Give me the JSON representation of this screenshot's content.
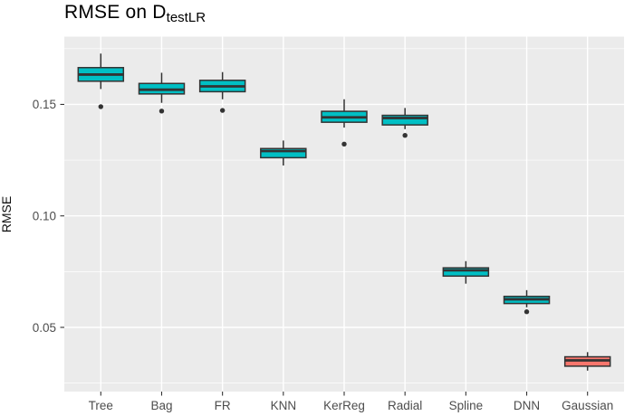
{
  "title": {
    "prefix": "RMSE on D",
    "subscript": "testLR"
  },
  "colors": {
    "panel_bg": "#EBEBEB",
    "grid": "#FFFFFF",
    "box_fill_teal": "#00BFC4",
    "box_fill_red": "#F8766D",
    "box_stroke": "#333333",
    "outlier": "#333333",
    "tick_mark": "#333333",
    "axis_text": "#4D4D4D",
    "title_text": "#000000"
  },
  "chart_data": {
    "type": "boxplot",
    "title": "RMSE on D_testLR",
    "xlabel": "",
    "ylabel": "RMSE",
    "ylim": [
      0.0212,
      0.1804
    ],
    "yticks": [
      0.05,
      0.1,
      0.15
    ],
    "ytick_labels": [
      "0.05",
      "0.10",
      "0.15"
    ],
    "yticks_minor": [
      0.025,
      0.075,
      0.125,
      0.175
    ],
    "grid": true,
    "legend": false,
    "categories": [
      "Tree",
      "Bag",
      "FR",
      "KNN",
      "KerReg",
      "Radial",
      "Spline",
      "DNN",
      "Gaussian"
    ],
    "series": [
      {
        "name": "Tree",
        "q1": 0.1604,
        "median": 0.1634,
        "q3": 0.1665,
        "whisker_low": 0.1569,
        "whisker_high": 0.1728,
        "outliers": [
          0.149
        ],
        "color": "teal"
      },
      {
        "name": "Bag",
        "q1": 0.1547,
        "median": 0.1566,
        "q3": 0.1594,
        "whisker_low": 0.1507,
        "whisker_high": 0.1642,
        "outliers": [
          0.147
        ],
        "color": "teal"
      },
      {
        "name": "FR",
        "q1": 0.1557,
        "median": 0.1581,
        "q3": 0.1608,
        "whisker_low": 0.1523,
        "whisker_high": 0.1645,
        "outliers": [
          0.1473
        ],
        "color": "teal"
      },
      {
        "name": "KNN",
        "q1": 0.1261,
        "median": 0.1291,
        "q3": 0.1302,
        "whisker_low": 0.1226,
        "whisker_high": 0.1338,
        "outliers": [],
        "color": "teal"
      },
      {
        "name": "KerReg",
        "q1": 0.142,
        "median": 0.1442,
        "q3": 0.1469,
        "whisker_low": 0.1396,
        "whisker_high": 0.1523,
        "outliers": [
          0.1322
        ],
        "color": "teal"
      },
      {
        "name": "Radial",
        "q1": 0.1408,
        "median": 0.1439,
        "q3": 0.1451,
        "whisker_low": 0.1389,
        "whisker_high": 0.1484,
        "outliers": [
          0.1361
        ],
        "color": "teal"
      },
      {
        "name": "Spline",
        "q1": 0.073,
        "median": 0.0756,
        "q3": 0.0767,
        "whisker_low": 0.0696,
        "whisker_high": 0.0797,
        "outliers": [],
        "color": "teal"
      },
      {
        "name": "DNN",
        "q1": 0.0607,
        "median": 0.0626,
        "q3": 0.0639,
        "whisker_low": 0.059,
        "whisker_high": 0.0667,
        "outliers": [
          0.057
        ],
        "color": "teal"
      },
      {
        "name": "Gaussian",
        "q1": 0.0326,
        "median": 0.0352,
        "q3": 0.0368,
        "whisker_low": 0.0306,
        "whisker_high": 0.0389,
        "outliers": [],
        "color": "red"
      }
    ]
  },
  "panel_geometry_note": "ggplot2-style grey panel with white major/minor gridlines"
}
